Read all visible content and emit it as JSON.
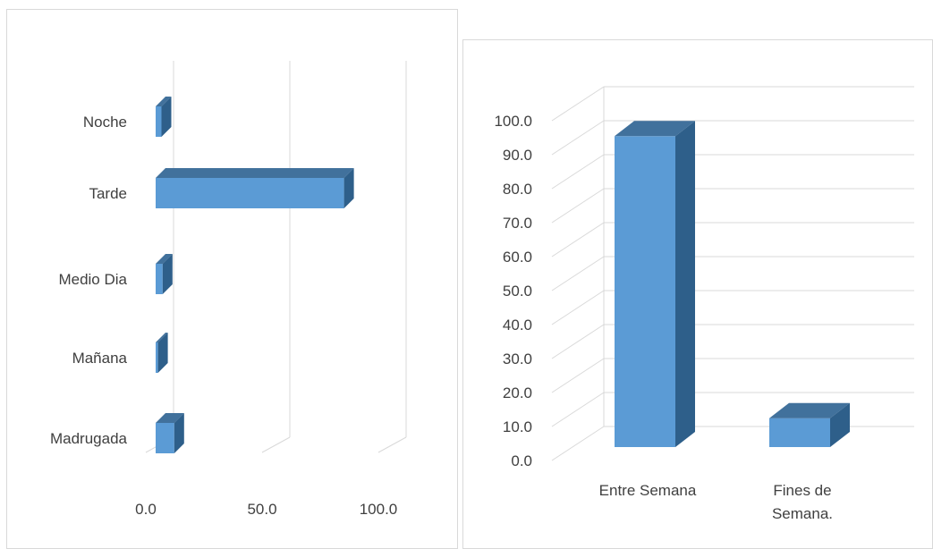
{
  "chart_data": [
    {
      "type": "bar",
      "orientation": "horizontal",
      "style": "3d",
      "categories": [
        "Noche",
        "Tarde",
        "Medio Dia",
        "Mañana",
        "Madrugada"
      ],
      "values": [
        2.5,
        81.0,
        3.0,
        1.0,
        8.0
      ],
      "xlim": [
        0,
        100
      ],
      "xticks": [
        "0.0",
        "50.0",
        "100.0"
      ],
      "grid": true,
      "legend": "none"
    },
    {
      "type": "bar",
      "orientation": "vertical",
      "style": "3d",
      "categories": [
        "Entre Semana",
        "Fines de Semana."
      ],
      "values": [
        91.5,
        8.5
      ],
      "ylim": [
        0,
        100
      ],
      "yticks": [
        "0.0",
        "10.0",
        "20.0",
        "30.0",
        "40.0",
        "50.0",
        "60.0",
        "70.0",
        "80.0",
        "90.0",
        "100.0"
      ],
      "grid": true,
      "legend": "none"
    }
  ],
  "colors": {
    "bar_front": "#5b9bd5",
    "bar_side": "#2e5f8a",
    "bar_top": "#41719c",
    "grid": "#d9d9d9",
    "text": "#404040",
    "border": "#d9d9d9"
  }
}
